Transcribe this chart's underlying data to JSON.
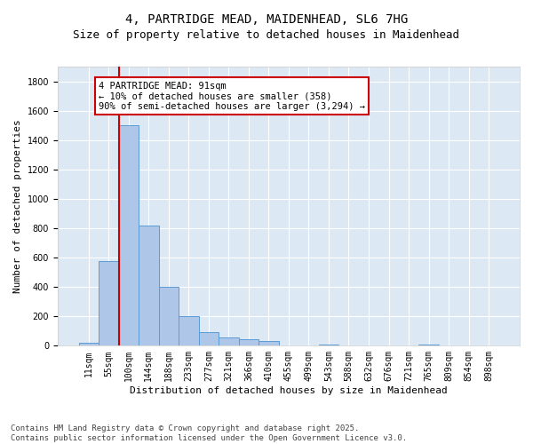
{
  "title_line1": "4, PARTRIDGE MEAD, MAIDENHEAD, SL6 7HG",
  "title_line2": "Size of property relative to detached houses in Maidenhead",
  "xlabel": "Distribution of detached houses by size in Maidenhead",
  "ylabel": "Number of detached properties",
  "categories": [
    "11sqm",
    "55sqm",
    "100sqm",
    "144sqm",
    "188sqm",
    "233sqm",
    "277sqm",
    "321sqm",
    "366sqm",
    "410sqm",
    "455sqm",
    "499sqm",
    "543sqm",
    "588sqm",
    "632sqm",
    "676sqm",
    "721sqm",
    "765sqm",
    "809sqm",
    "854sqm",
    "898sqm"
  ],
  "values": [
    20,
    578,
    1500,
    820,
    400,
    200,
    95,
    55,
    45,
    35,
    5,
    5,
    10,
    0,
    0,
    0,
    0,
    10,
    0,
    5,
    0
  ],
  "bar_color": "#aec6e8",
  "bar_edge_color": "#5b9bd5",
  "vline_x": 1.5,
  "vline_color": "#cc0000",
  "annotation_text": "4 PARTRIDGE MEAD: 91sqm\n← 10% of detached houses are smaller (358)\n90% of semi-detached houses are larger (3,294) →",
  "annotation_box_color": "#ffffff",
  "annotation_box_edge": "#cc0000",
  "ylim": [
    0,
    1900
  ],
  "yticks": [
    0,
    200,
    400,
    600,
    800,
    1000,
    1200,
    1400,
    1600,
    1800
  ],
  "background_color": "#dce9f5",
  "grid_color": "#ffffff",
  "footer": "Contains HM Land Registry data © Crown copyright and database right 2025.\nContains public sector information licensed under the Open Government Licence v3.0.",
  "title_fontsize": 10,
  "subtitle_fontsize": 9,
  "xlabel_fontsize": 8,
  "ylabel_fontsize": 8,
  "tick_fontsize": 7,
  "annotation_fontsize": 7.5,
  "footer_fontsize": 6.5
}
